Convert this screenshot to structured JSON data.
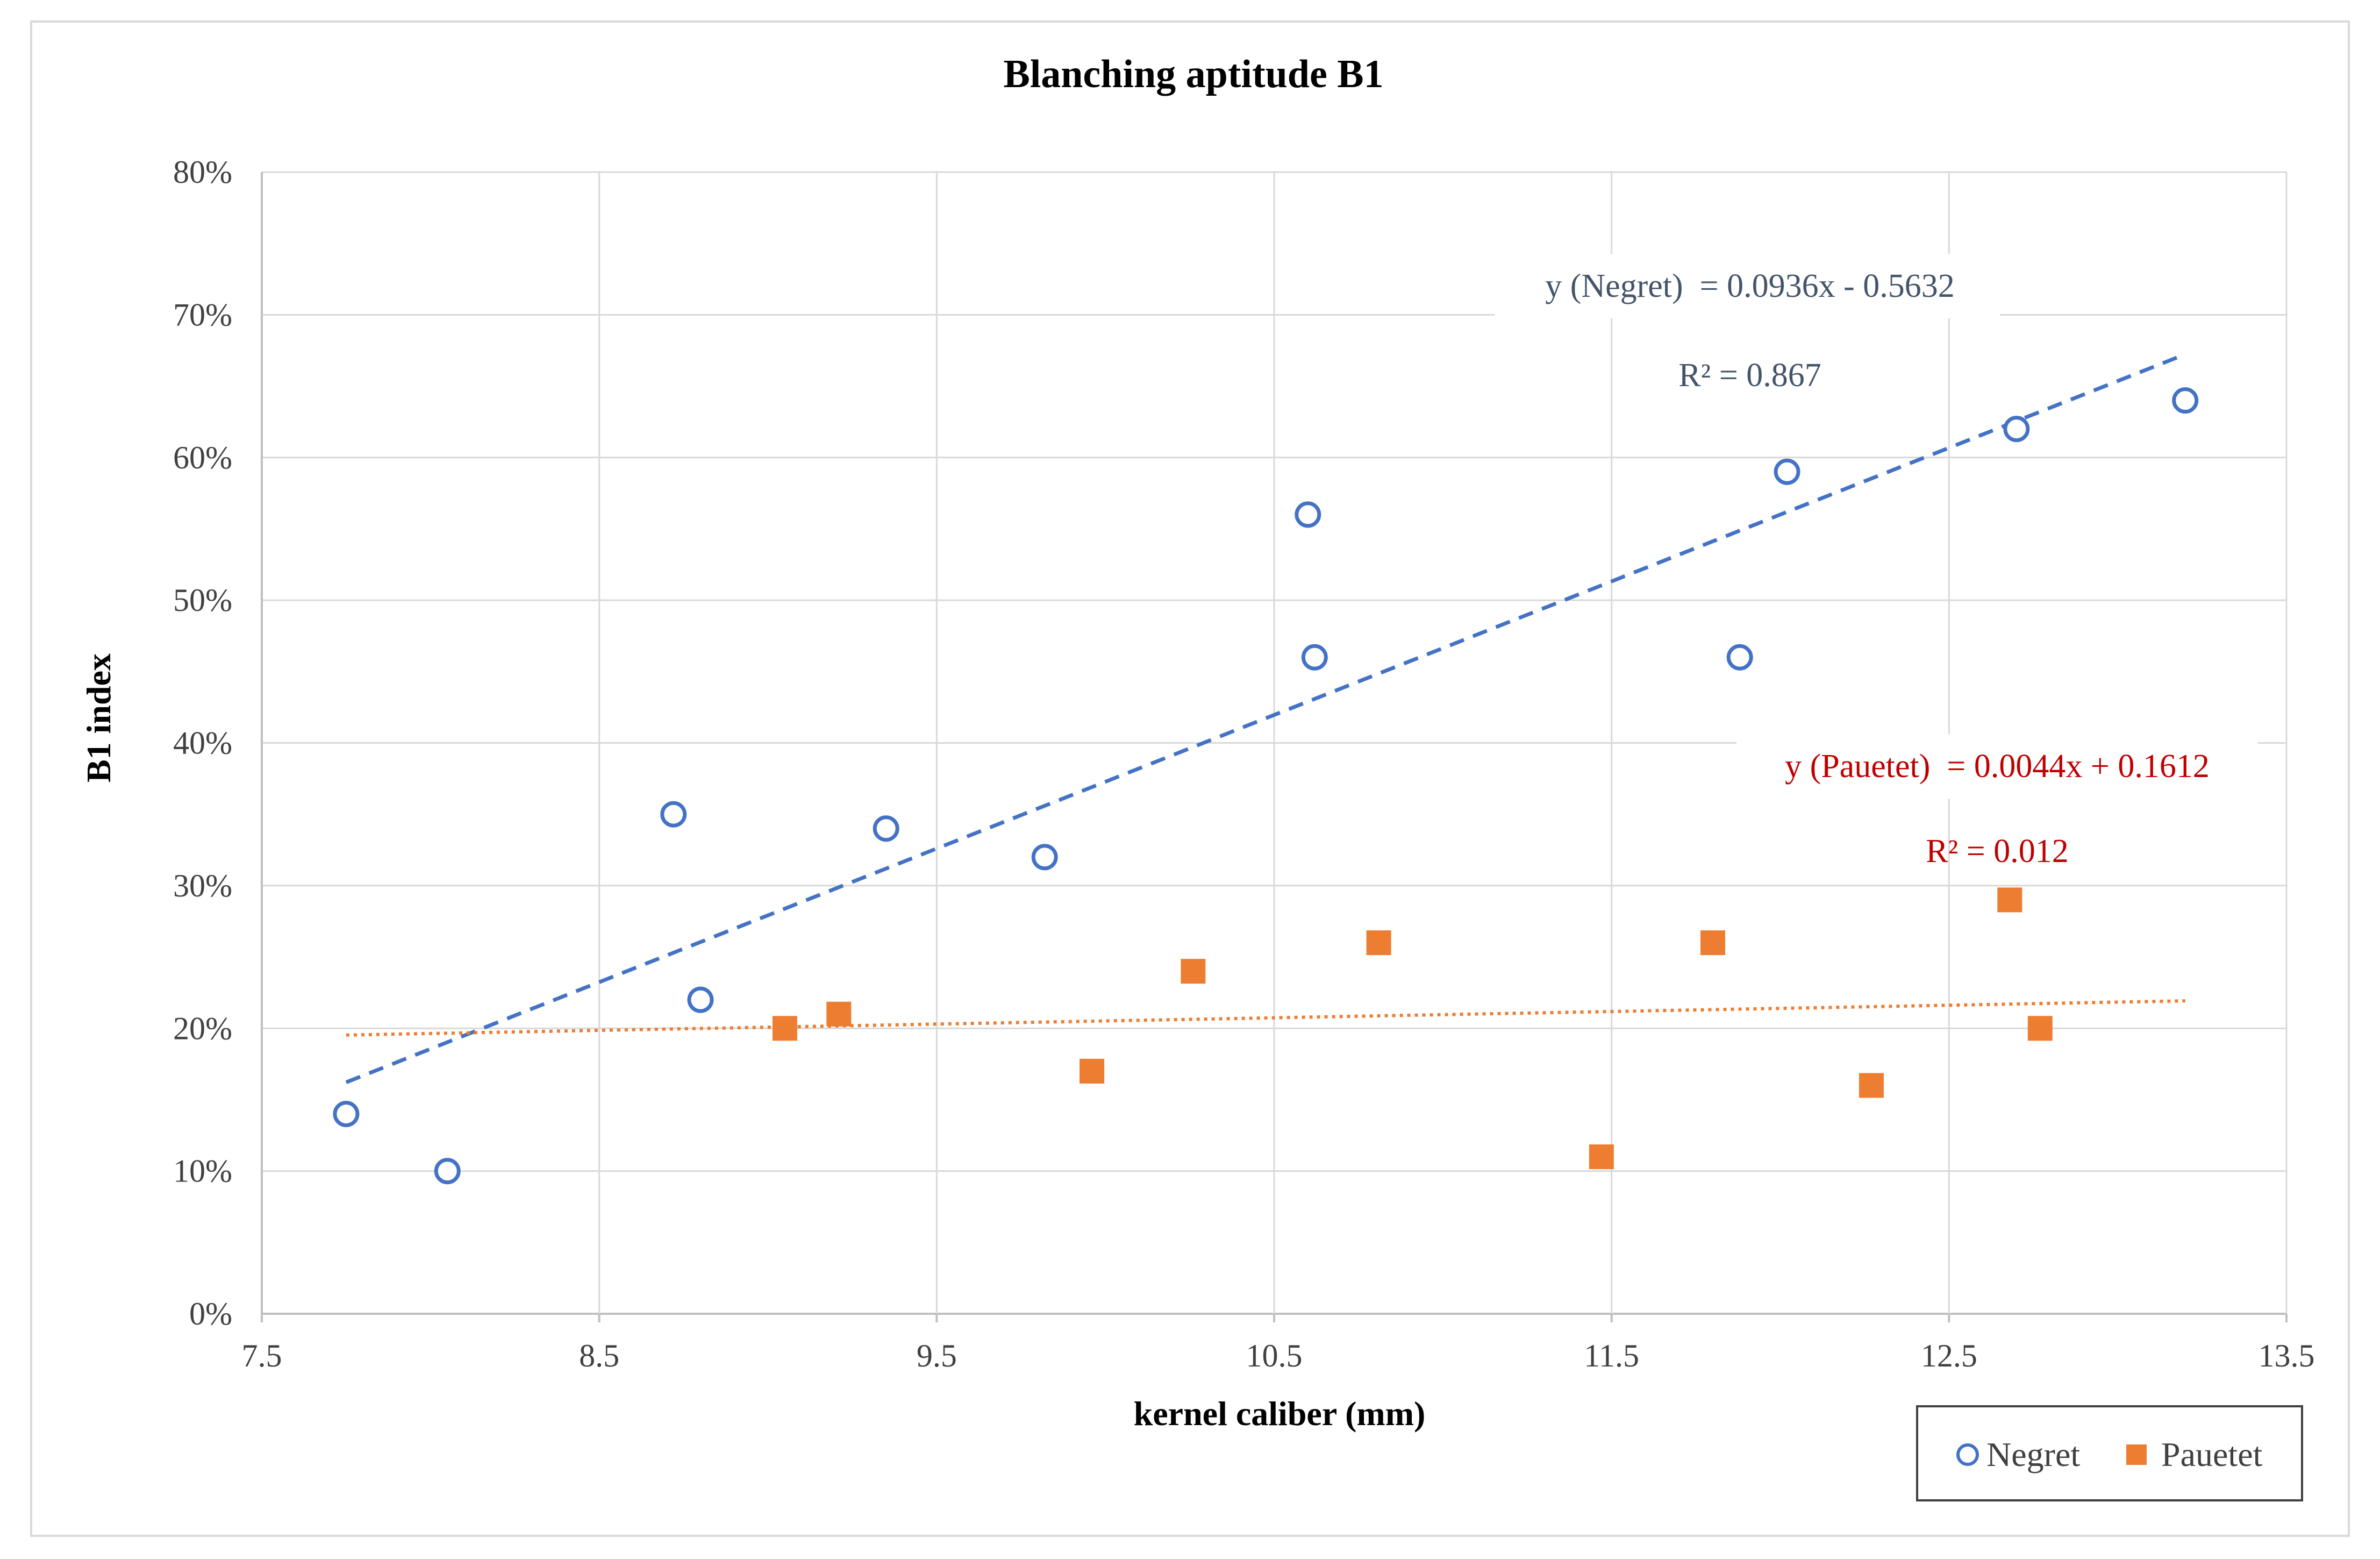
{
  "colors": {
    "negret": "#4472c4",
    "pauetet": "#ed7d31",
    "pauetet_eq_text": "#c00000",
    "negret_eq_text": "#44546a",
    "grid": "#d9d9d9",
    "axis": "#bfbfbf"
  },
  "chart_data": {
    "type": "scatter",
    "title": "Blanching aptitude B1",
    "xlabel": "kernel caliber (mm)",
    "ylabel": "B1 index",
    "xlim": [
      7.5,
      13.5
    ],
    "ylim": [
      0,
      0.8
    ],
    "x_ticks": [
      7.5,
      8.5,
      9.5,
      10.5,
      11.5,
      12.5,
      13.5
    ],
    "x_tick_labels": [
      "7.5",
      "8.5",
      "9.5",
      "10.5",
      "11.5",
      "12.5",
      "13.5"
    ],
    "y_ticks": [
      0,
      0.1,
      0.2,
      0.3,
      0.4,
      0.5,
      0.6,
      0.7,
      0.8
    ],
    "y_tick_labels": [
      "0%",
      "10%",
      "20%",
      "30%",
      "40%",
      "50%",
      "60%",
      "70%",
      "80%"
    ],
    "grid": true,
    "legend_position": "bottom-right",
    "series": [
      {
        "name": "Negret",
        "marker": "open-circle",
        "color": "#4472c4",
        "points": [
          [
            7.75,
            0.14
          ],
          [
            8.05,
            0.1
          ],
          [
            8.72,
            0.35
          ],
          [
            8.8,
            0.22
          ],
          [
            9.35,
            0.34
          ],
          [
            9.82,
            0.32
          ],
          [
            10.6,
            0.56
          ],
          [
            10.62,
            0.46
          ],
          [
            11.88,
            0.46
          ],
          [
            12.02,
            0.59
          ],
          [
            12.7,
            0.62
          ],
          [
            13.2,
            0.64
          ]
        ],
        "trendline": {
          "style": "dashed",
          "x_range": [
            7.75,
            13.2
          ],
          "slope": 0.0936,
          "intercept": -0.5632,
          "equation": "y (Negret)  = 0.0936x - 0.5632",
          "r2_label": "R² = 0.867"
        }
      },
      {
        "name": "Pauetet",
        "marker": "filled-square",
        "color": "#ed7d31",
        "points": [
          [
            9.05,
            0.2
          ],
          [
            9.21,
            0.21
          ],
          [
            9.96,
            0.17
          ],
          [
            10.26,
            0.24
          ],
          [
            10.81,
            0.26
          ],
          [
            11.47,
            0.11
          ],
          [
            11.8,
            0.26
          ],
          [
            12.27,
            0.16
          ],
          [
            12.68,
            0.29
          ],
          [
            12.77,
            0.2
          ]
        ],
        "trendline": {
          "style": "dotted",
          "x_range": [
            7.75,
            13.2
          ],
          "slope": 0.0044,
          "intercept": 0.1612,
          "equation": "y (Pauetet)  = 0.0044x + 0.1612",
          "r2_label": "R² = 0.012"
        }
      }
    ]
  }
}
